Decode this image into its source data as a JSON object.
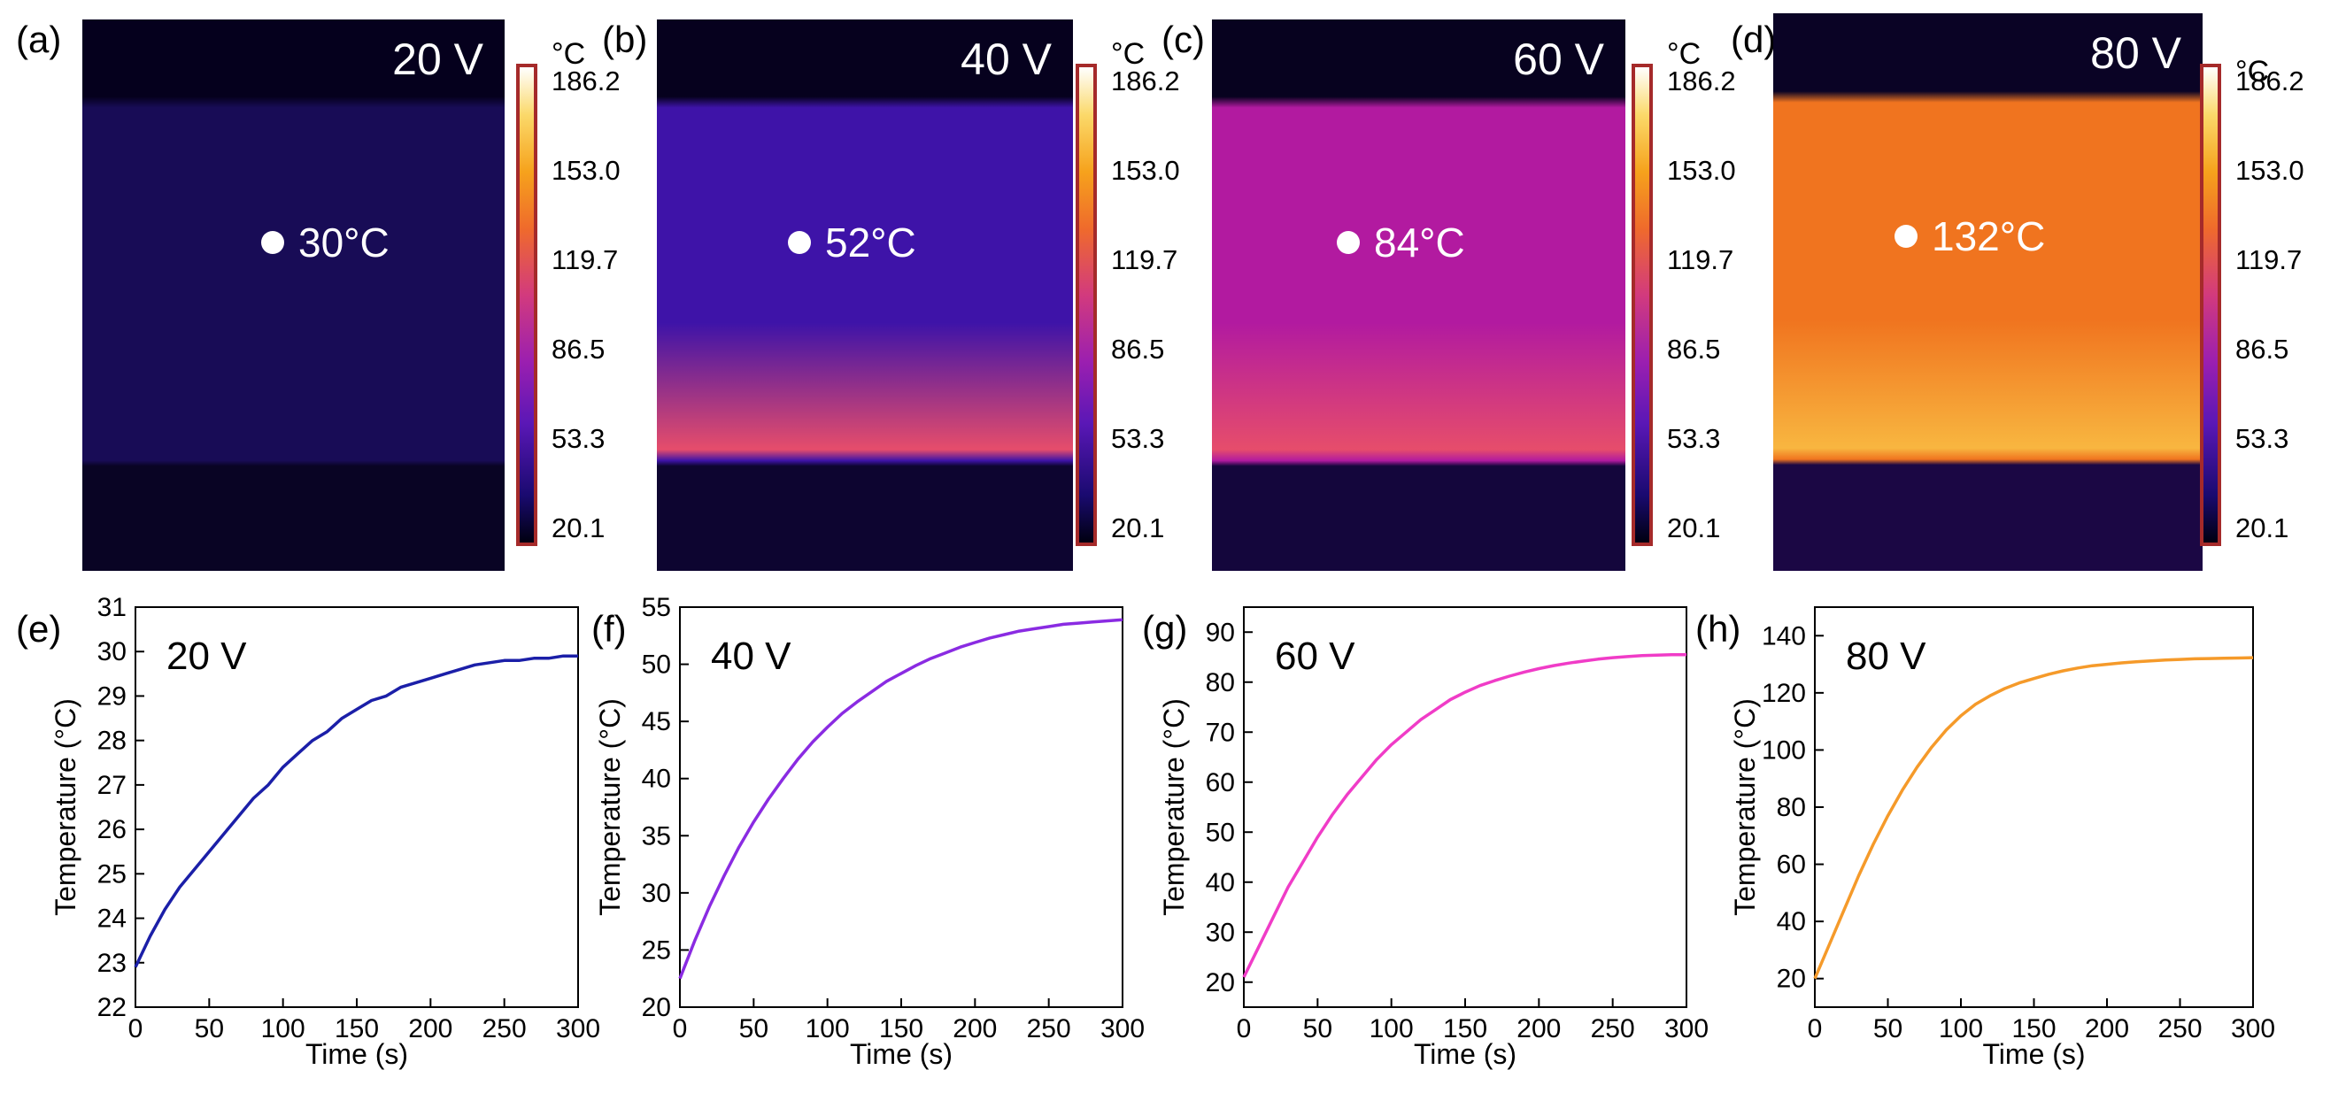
{
  "thermal_panels": [
    {
      "label": "(a)",
      "voltage": "20 V",
      "spot": "30°C",
      "unit": "°C",
      "colorbar": [
        "186.2",
        "153.0",
        "119.7",
        "86.5",
        "53.3",
        "20.1"
      ],
      "colors": {
        "top": "#05001d",
        "body": "#180c56",
        "bottom": "#090424"
      }
    },
    {
      "label": "(b)",
      "voltage": "40 V",
      "spot": "52°C",
      "unit": "°C",
      "colorbar": [
        "186.2",
        "153.0",
        "119.7",
        "86.5",
        "53.3",
        "20.1"
      ],
      "colors": {
        "top": "#06011e",
        "body": "#3e13a8",
        "bottom": "#0d0530"
      }
    },
    {
      "label": "(c)",
      "voltage": "60 V",
      "spot": "84°C",
      "unit": "°C",
      "colorbar": [
        "186.2",
        "153.0",
        "119.7",
        "86.5",
        "53.3",
        "20.1"
      ],
      "colors": {
        "top": "#07021f",
        "body": "#b21aa0",
        "bottom": "#14063c"
      }
    },
    {
      "label": "(d)",
      "voltage": "80 V",
      "spot": "132°C",
      "unit": "°C",
      "colorbar": [
        "186.2",
        "153.0",
        "119.7",
        "86.5",
        "53.3",
        "20.1"
      ],
      "colors": {
        "top": "#0a0325",
        "body": "#f0741f",
        "bottom": "#1b0744"
      }
    }
  ],
  "chart_data": [
    {
      "type": "line",
      "label": "(e)",
      "annotation": "20 V",
      "xlabel": "Time (s)",
      "ylabel": "Temperature (°C)",
      "xlim": [
        0,
        300
      ],
      "ylim": [
        22,
        31
      ],
      "xticks": [
        "0",
        "50",
        "100",
        "150",
        "200",
        "250",
        "300"
      ],
      "yticks": [
        "22",
        "23",
        "24",
        "25",
        "26",
        "27",
        "28",
        "29",
        "30",
        "31"
      ],
      "series": [
        {
          "name": "20 V",
          "color": "#1b1fa8",
          "x": [
            0,
            10,
            20,
            30,
            40,
            50,
            60,
            70,
            80,
            90,
            100,
            110,
            120,
            130,
            140,
            150,
            160,
            170,
            180,
            190,
            200,
            210,
            220,
            230,
            240,
            250,
            260,
            270,
            280,
            290,
            300
          ],
          "y": [
            22.9,
            23.6,
            24.2,
            24.7,
            25.1,
            25.5,
            25.9,
            26.3,
            26.7,
            27.0,
            27.4,
            27.7,
            28.0,
            28.2,
            28.5,
            28.7,
            28.9,
            29.0,
            29.2,
            29.3,
            29.4,
            29.5,
            29.6,
            29.7,
            29.75,
            29.8,
            29.8,
            29.85,
            29.85,
            29.9,
            29.9
          ]
        }
      ]
    },
    {
      "type": "line",
      "label": "(f)",
      "annotation": "40 V",
      "xlabel": "Time (s)",
      "ylabel": "Temperature (°C)",
      "xlim": [
        0,
        300
      ],
      "ylim": [
        20,
        55
      ],
      "xticks": [
        "0",
        "50",
        "100",
        "150",
        "200",
        "250",
        "300"
      ],
      "yticks": [
        "20",
        "25",
        "30",
        "35",
        "40",
        "45",
        "50",
        "55"
      ],
      "series": [
        {
          "name": "40 V",
          "color": "#8a2be2",
          "x": [
            0,
            10,
            20,
            30,
            40,
            50,
            60,
            70,
            80,
            90,
            100,
            110,
            120,
            130,
            140,
            150,
            160,
            170,
            180,
            190,
            200,
            210,
            220,
            230,
            240,
            250,
            260,
            270,
            280,
            290,
            300
          ],
          "y": [
            22.5,
            25.8,
            28.8,
            31.5,
            34.0,
            36.2,
            38.2,
            40.0,
            41.7,
            43.2,
            44.5,
            45.7,
            46.7,
            47.6,
            48.5,
            49.2,
            49.9,
            50.5,
            51.0,
            51.5,
            51.9,
            52.3,
            52.6,
            52.9,
            53.1,
            53.3,
            53.5,
            53.6,
            53.7,
            53.8,
            53.9
          ]
        }
      ]
    },
    {
      "type": "line",
      "label": "(g)",
      "annotation": "60 V",
      "xlabel": "Time (s)",
      "ylabel": "Temperature (°C)",
      "xlim": [
        0,
        300
      ],
      "ylim": [
        15,
        95
      ],
      "xticks": [
        "0",
        "50",
        "100",
        "150",
        "200",
        "250",
        "300"
      ],
      "yticks": [
        "20",
        "30",
        "40",
        "50",
        "60",
        "70",
        "80",
        "90"
      ],
      "series": [
        {
          "name": "60 V",
          "color": "#f03cc7",
          "x": [
            0,
            10,
            20,
            30,
            40,
            50,
            60,
            70,
            80,
            90,
            100,
            110,
            120,
            130,
            140,
            150,
            160,
            170,
            180,
            190,
            200,
            210,
            220,
            230,
            240,
            250,
            260,
            270,
            280,
            290,
            300
          ],
          "y": [
            21,
            27,
            33,
            39,
            44,
            49,
            53.5,
            57.5,
            61,
            64.5,
            67.5,
            70,
            72.5,
            74.5,
            76.5,
            78,
            79.3,
            80.3,
            81.2,
            82,
            82.7,
            83.3,
            83.8,
            84.2,
            84.6,
            84.9,
            85.1,
            85.3,
            85.4,
            85.5,
            85.5
          ]
        }
      ]
    },
    {
      "type": "line",
      "label": "(h)",
      "annotation": "80 V",
      "xlabel": "Time (s)",
      "ylabel": "Temperature (°C)",
      "xlim": [
        0,
        300
      ],
      "ylim": [
        10,
        150
      ],
      "xticks": [
        "0",
        "50",
        "100",
        "150",
        "200",
        "250",
        "300"
      ],
      "yticks": [
        "20",
        "40",
        "60",
        "80",
        "100",
        "120",
        "140"
      ],
      "series": [
        {
          "name": "80 V",
          "color": "#f59a2a",
          "x": [
            0,
            10,
            20,
            30,
            40,
            50,
            60,
            70,
            80,
            90,
            100,
            110,
            120,
            130,
            140,
            150,
            160,
            170,
            180,
            190,
            200,
            210,
            220,
            230,
            240,
            250,
            260,
            270,
            280,
            290,
            300
          ],
          "y": [
            20,
            32,
            44,
            56,
            67,
            77,
            86,
            94,
            101,
            107,
            112,
            116,
            119,
            121.5,
            123.5,
            125,
            126.5,
            127.7,
            128.7,
            129.5,
            130,
            130.5,
            130.9,
            131.2,
            131.5,
            131.7,
            131.9,
            132,
            132.1,
            132.2,
            132.3
          ]
        }
      ]
    }
  ]
}
